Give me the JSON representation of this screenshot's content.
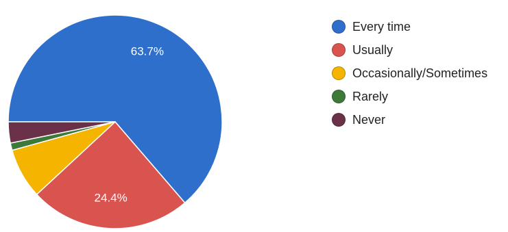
{
  "chart_data": {
    "type": "pie",
    "title": "",
    "start_angle_deg": 180,
    "direction": "clockwise",
    "slices": [
      {
        "name": "Every time",
        "value": 63.7,
        "label": "63.7%",
        "color": "#2f6fcc"
      },
      {
        "name": "Usually",
        "value": 24.4,
        "label": "24.4%",
        "color": "#d9544f"
      },
      {
        "name": "Occasionally/Sometimes",
        "value": 7.6,
        "label": "",
        "color": "#f5b400"
      },
      {
        "name": "Rarely",
        "value": 1.1,
        "label": "",
        "color": "#3d7a3a"
      },
      {
        "name": "Never",
        "value": 3.2,
        "label": "",
        "color": "#6b3148"
      }
    ],
    "legend_position": "right"
  }
}
